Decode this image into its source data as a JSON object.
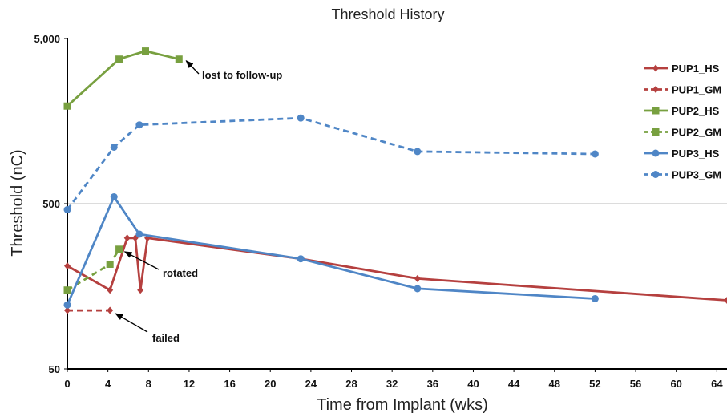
{
  "chart_data": {
    "type": "line",
    "title": "Threshold History",
    "xlabel": "Time from Implant (wks)",
    "ylabel": "Threshold (nC)",
    "xlim": [
      0,
      65
    ],
    "ylim": [
      50,
      5000
    ],
    "yscale": "log",
    "x_ticks": [
      0,
      4,
      8,
      12,
      16,
      20,
      24,
      28,
      32,
      36,
      40,
      44,
      48,
      52,
      56,
      60,
      64
    ],
    "y_ticks": [
      {
        "value": 50,
        "label": "50"
      },
      {
        "value": 500,
        "label": "500"
      },
      {
        "value": 5000,
        "label": "5,000"
      }
    ],
    "gridlines_y": [
      500
    ],
    "legend_position": "right",
    "series": [
      {
        "name": "PUP1_HS",
        "color": "#b5403f",
        "dash": "solid",
        "marker": "diamond",
        "points": [
          [
            0,
            210
          ],
          [
            4.2,
            150
          ],
          [
            5.9,
            310
          ],
          [
            6.7,
            310
          ],
          [
            7.2,
            150
          ],
          [
            7.9,
            310
          ],
          [
            23,
            232
          ],
          [
            34.5,
            176
          ],
          [
            65,
            130
          ]
        ]
      },
      {
        "name": "PUP1_GM",
        "color": "#b5403f",
        "dash": "dashed",
        "marker": "diamond",
        "points": [
          [
            0,
            113
          ],
          [
            4.2,
            113
          ]
        ]
      },
      {
        "name": "PUP2_HS",
        "color": "#78a040",
        "dash": "solid",
        "marker": "square",
        "points": [
          [
            0,
            1950
          ],
          [
            5.1,
            3750
          ],
          [
            7.7,
            4200
          ],
          [
            11,
            3750
          ]
        ]
      },
      {
        "name": "PUP2_GM",
        "color": "#78a040",
        "dash": "dashed",
        "marker": "square",
        "points": [
          [
            0,
            150
          ],
          [
            4.2,
            215
          ],
          [
            5.1,
            265
          ]
        ]
      },
      {
        "name": "PUP3_HS",
        "color": "#4f86c6",
        "dash": "solid",
        "marker": "circle",
        "points": [
          [
            0,
            122
          ],
          [
            4.6,
            550
          ],
          [
            7.1,
            327
          ],
          [
            23,
            232
          ],
          [
            34.5,
            153
          ],
          [
            52,
            133
          ]
        ]
      },
      {
        "name": "PUP3_GM",
        "color": "#4f86c6",
        "dash": "dashed",
        "marker": "circle",
        "points": [
          [
            0,
            460
          ],
          [
            4.6,
            1100
          ],
          [
            7.1,
            1500
          ],
          [
            23,
            1650
          ],
          [
            34.5,
            1035
          ],
          [
            52,
            1000
          ]
        ]
      }
    ],
    "annotations": [
      {
        "text": "lost to follow-up",
        "x": 11,
        "y": 3750
      },
      {
        "text": "rotated",
        "x": 5.1,
        "y": 265
      },
      {
        "text": "failed",
        "x": 4.2,
        "y": 113
      }
    ]
  }
}
